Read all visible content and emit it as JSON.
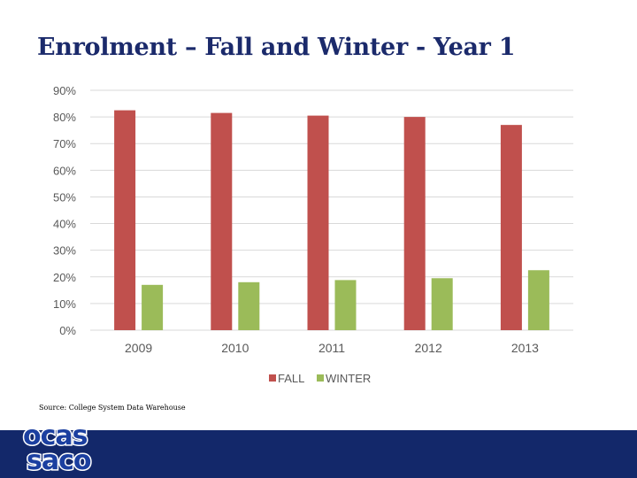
{
  "slide": {
    "title": "Enrolment –  Fall and Winter - Year 1",
    "source": "Source: College System Data Warehouse",
    "logo_text_top": "ocas",
    "logo_text_bottom": "saco"
  },
  "colors": {
    "title": "#1b2a6b",
    "fall": "#c0504d",
    "winter": "#9bbb59",
    "grid": "#d9d9d9",
    "axis_text": "#595959",
    "footer": "#13286a",
    "logo": "#1b3fa0"
  },
  "chart_data": {
    "type": "bar",
    "categories": [
      "2009",
      "2010",
      "2011",
      "2012",
      "2013"
    ],
    "series": [
      {
        "name": "FALL",
        "values": [
          82.5,
          81.5,
          80.5,
          80,
          77
        ]
      },
      {
        "name": "WINTER",
        "values": [
          17,
          18,
          18.8,
          19.5,
          22.5
        ]
      }
    ],
    "yticks": [
      "0%",
      "10%",
      "20%",
      "30%",
      "40%",
      "50%",
      "60%",
      "70%",
      "80%",
      "90%"
    ],
    "ylim": [
      0,
      90
    ],
    "grid": true,
    "legend_position": "bottom"
  }
}
